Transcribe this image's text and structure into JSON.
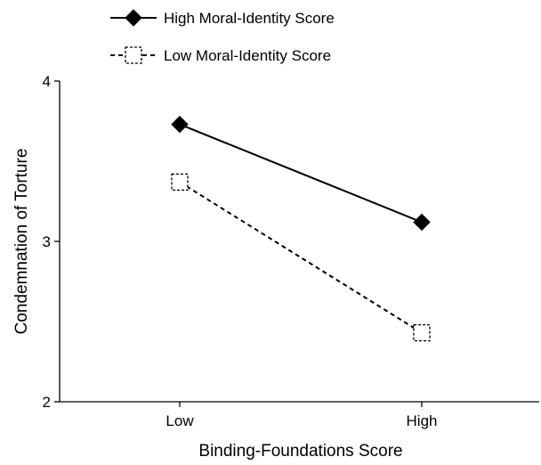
{
  "chart_data": {
    "type": "line",
    "categories": [
      "Low",
      "High"
    ],
    "series": [
      {
        "name": "High Moral-Identity Score",
        "values": [
          3.73,
          3.12
        ],
        "marker": "filled-diamond",
        "line_style": "solid",
        "color": "#000000"
      },
      {
        "name": "Low Moral-Identity Score",
        "values": [
          3.37,
          2.43
        ],
        "marker": "open-square",
        "line_style": "dashed",
        "color": "#000000"
      }
    ],
    "xlabel": "Binding-Foundations Score",
    "ylabel": "Condemnation of Torture",
    "ylim": [
      2,
      4
    ],
    "yticks": [
      2,
      3,
      4
    ],
    "grid": false,
    "legend_placement": "top-left"
  }
}
